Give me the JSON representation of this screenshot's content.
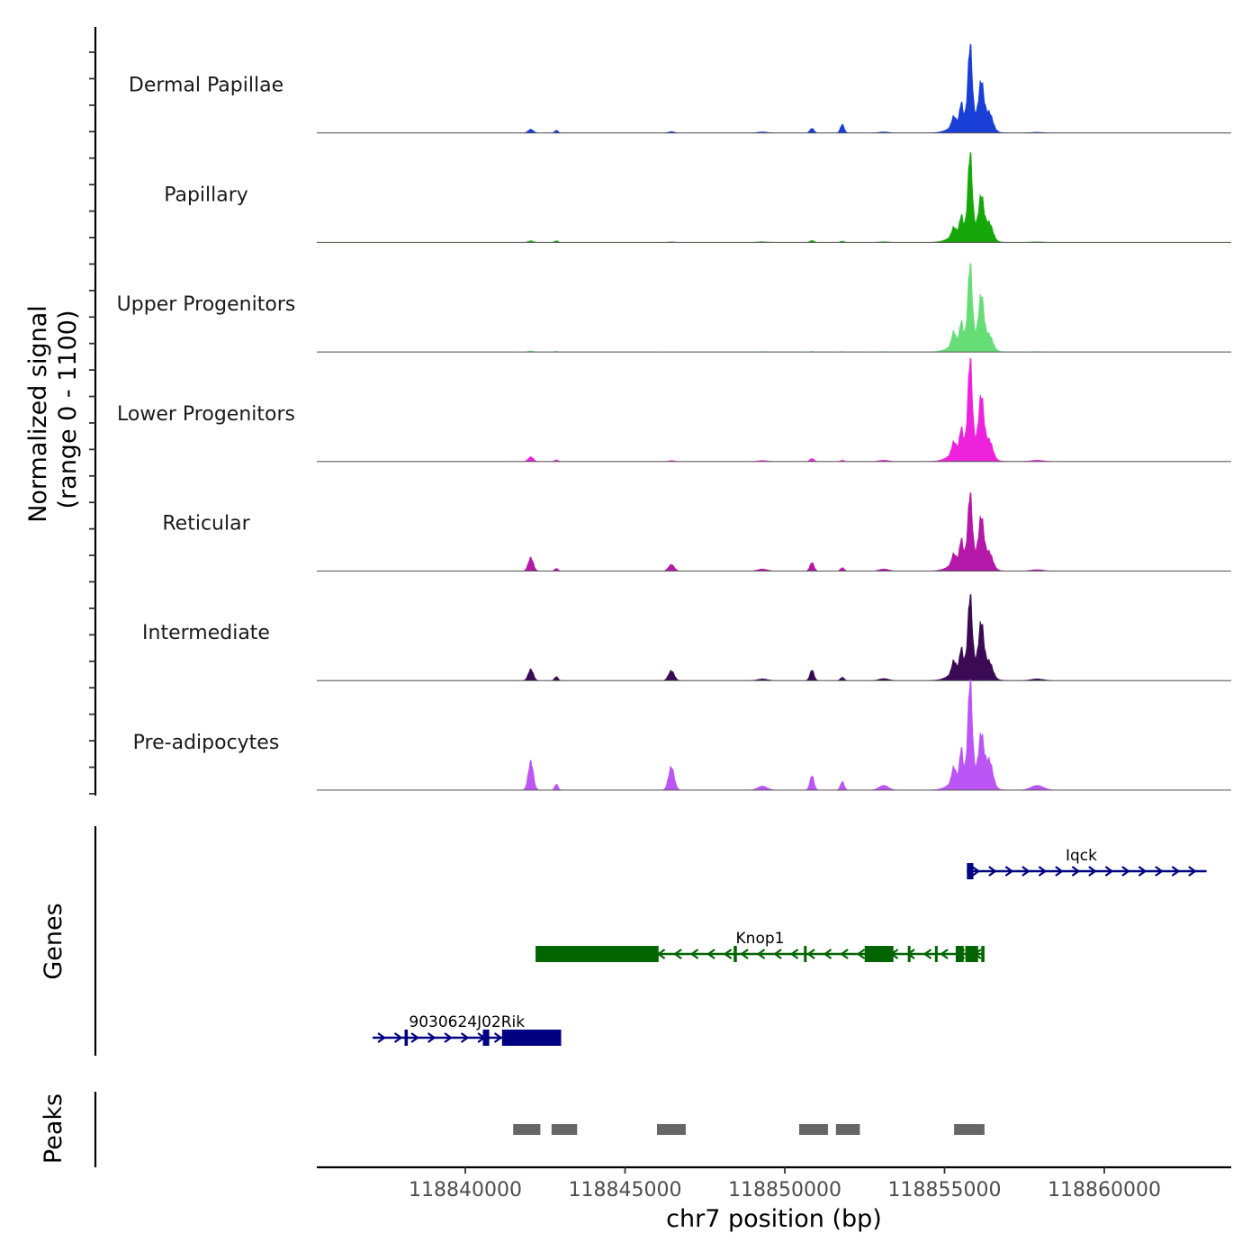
{
  "chart_data": {
    "type": "area",
    "title": "",
    "ylabel": "Normalized signal",
    "ylabel_range": "(range 0 - 1100)",
    "yrange": [
      0,
      1100
    ],
    "xlabel": "chr7 position (bp)",
    "xlim": [
      118835500,
      118864200
    ],
    "xticks": [
      118840000,
      118845000,
      118850000,
      118855000,
      118860000
    ],
    "xtick_labels": [
      "118840000",
      "118845000",
      "118850000",
      "118855000",
      "118860000"
    ],
    "peak_shapes": [
      {
        "center": 118855800,
        "width": 65
      },
      {
        "center": 118856150,
        "width": 80
      },
      {
        "center": 118855520,
        "width": 45
      },
      {
        "center": 118855280,
        "width": 60
      },
      {
        "center": 118856400,
        "width": 110
      },
      {
        "center": 118855750,
        "width": 380
      },
      {
        "center": 118842050,
        "width": 80
      },
      {
        "center": 118842850,
        "width": 55
      },
      {
        "center": 118846450,
        "width": 90
      },
      {
        "center": 118850850,
        "width": 65
      },
      {
        "center": 118851800,
        "width": 60
      },
      {
        "center": 118849300,
        "width": 150
      },
      {
        "center": 118853100,
        "width": 150
      },
      {
        "center": 118857900,
        "width": 200
      }
    ],
    "series": [
      {
        "name": "Dermal Papillae",
        "color": "#1a3fd6",
        "values": [
          1080,
          620,
          250,
          130,
          250,
          260,
          55,
          40,
          20,
          70,
          130,
          15,
          15,
          10
        ]
      },
      {
        "name": "Papillary",
        "color": "#16a808",
        "values": [
          1100,
          550,
          200,
          110,
          240,
          260,
          25,
          25,
          8,
          30,
          20,
          10,
          10,
          8
        ]
      },
      {
        "name": "Upper Progenitors",
        "color": "#66dd77",
        "values": [
          1070,
          700,
          250,
          180,
          200,
          270,
          15,
          10,
          4,
          8,
          6,
          6,
          6,
          6
        ]
      },
      {
        "name": "Lower Progenitors",
        "color": "#ee22dd",
        "values": [
          1240,
          800,
          250,
          150,
          250,
          320,
          70,
          25,
          15,
          45,
          20,
          15,
          20,
          20
        ]
      },
      {
        "name": "Reticular",
        "color": "#b418a8",
        "values": [
          900,
          650,
          260,
          130,
          220,
          280,
          200,
          40,
          100,
          130,
          50,
          30,
          30,
          20
        ]
      },
      {
        "name": "Intermediate",
        "color": "#3b0a55",
        "values": [
          1000,
          700,
          250,
          160,
          220,
          300,
          170,
          60,
          150,
          160,
          50,
          25,
          30,
          25
        ]
      },
      {
        "name": "Pre-adipocytes",
        "color": "#bb55f5",
        "values": [
          1350,
          650,
          380,
          200,
          380,
          320,
          430,
          90,
          350,
          220,
          130,
          60,
          70,
          70
        ]
      }
    ],
    "genes": [
      {
        "name": "Iqck",
        "strand": "+",
        "color": "#000080",
        "start": 118855700,
        "end": 118863200,
        "exons": [
          [
            118855700,
            118855900
          ]
        ]
      },
      {
        "name": "Knop1",
        "strand": "-",
        "color": "#006400",
        "start": 118842200,
        "end": 118856250,
        "exons": [
          [
            118842200,
            118846050
          ],
          [
            118848400,
            118848500
          ],
          [
            118850600,
            118850680
          ],
          [
            118852500,
            118853400
          ],
          [
            118853850,
            118853930
          ],
          [
            118854700,
            118854780
          ],
          [
            118855350,
            118855600
          ],
          [
            118855650,
            118856050
          ],
          [
            118856150,
            118856250
          ]
        ]
      },
      {
        "name": "9030624J02Rik",
        "strand": "+",
        "color": "#000080",
        "start": 118837100,
        "end": 118843000,
        "exons": [
          [
            118838100,
            118838200
          ],
          [
            118840550,
            118840750
          ],
          [
            118841150,
            118841500
          ],
          [
            118841450,
            118843000
          ]
        ]
      }
    ],
    "peaks": [
      [
        118841500,
        118842350
      ],
      [
        118842700,
        118843500
      ],
      [
        118846000,
        118846900
      ],
      [
        118850450,
        118851350
      ],
      [
        118851600,
        118852350
      ],
      [
        118855300,
        118856250
      ]
    ],
    "track_panels": [
      "Genes",
      "Peaks"
    ]
  }
}
